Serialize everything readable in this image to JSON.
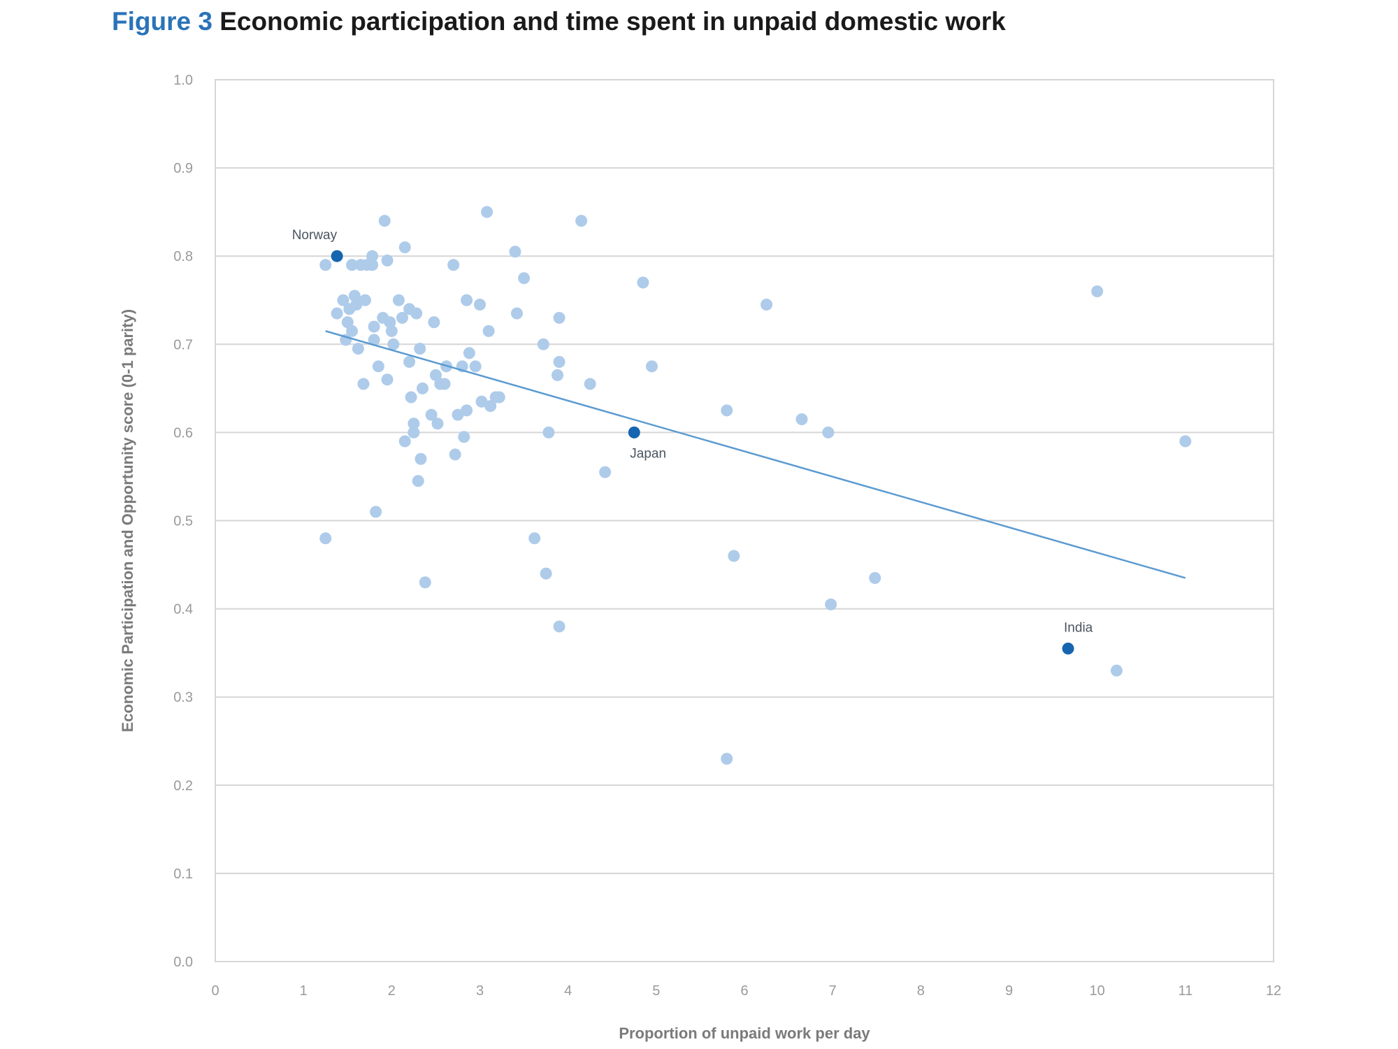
{
  "figure": {
    "number": "Figure 3",
    "title": "Economic participation and time spent in unpaid domestic work"
  },
  "colors": {
    "point": "#aecbea",
    "highlight": "#1565b0",
    "trend": "#5b9bd1",
    "grid": "#d6d6d6",
    "title_accent": "#2a73b8"
  },
  "chart_data": {
    "type": "scatter",
    "title": "Economic participation and time spent in unpaid domestic work",
    "xlabel": "Proportion of unpaid work per day",
    "ylabel": "Economic Participation and Opportunity score (0-1 parity)",
    "xlim": [
      0,
      12
    ],
    "ylim": [
      0,
      1.0
    ],
    "xticks": [
      "0",
      "1",
      "2",
      "3",
      "4",
      "5",
      "6",
      "7",
      "8",
      "9",
      "10",
      "11",
      "12"
    ],
    "yticks": [
      "0.0",
      "0.1",
      "0.2",
      "0.3",
      "0.4",
      "0.5",
      "0.6",
      "0.7",
      "0.8",
      "0.9",
      "1.0"
    ],
    "grid": "horizontal",
    "highlighted": [
      {
        "label": "Norway",
        "x": 1.38,
        "y": 0.8
      },
      {
        "label": "Japan",
        "x": 4.75,
        "y": 0.6
      },
      {
        "label": "India",
        "x": 9.67,
        "y": 0.355
      }
    ],
    "trendline": [
      [
        1.25,
        0.715
      ],
      [
        11.0,
        0.435
      ]
    ],
    "points": [
      [
        1.25,
        0.79
      ],
      [
        1.25,
        0.48
      ],
      [
        1.38,
        0.735
      ],
      [
        1.45,
        0.75
      ],
      [
        1.48,
        0.705
      ],
      [
        1.5,
        0.725
      ],
      [
        1.52,
        0.74
      ],
      [
        1.55,
        0.715
      ],
      [
        1.55,
        0.79
      ],
      [
        1.58,
        0.755
      ],
      [
        1.6,
        0.745
      ],
      [
        1.62,
        0.695
      ],
      [
        1.65,
        0.79
      ],
      [
        1.68,
        0.655
      ],
      [
        1.7,
        0.75
      ],
      [
        1.72,
        0.79
      ],
      [
        1.78,
        0.8
      ],
      [
        1.78,
        0.79
      ],
      [
        1.8,
        0.72
      ],
      [
        1.8,
        0.705
      ],
      [
        1.82,
        0.51
      ],
      [
        1.85,
        0.675
      ],
      [
        1.9,
        0.73
      ],
      [
        1.92,
        0.84
      ],
      [
        1.95,
        0.795
      ],
      [
        1.95,
        0.66
      ],
      [
        1.98,
        0.725
      ],
      [
        2.0,
        0.715
      ],
      [
        2.02,
        0.7
      ],
      [
        2.08,
        0.75
      ],
      [
        2.12,
        0.73
      ],
      [
        2.15,
        0.81
      ],
      [
        2.15,
        0.59
      ],
      [
        2.2,
        0.74
      ],
      [
        2.2,
        0.68
      ],
      [
        2.22,
        0.64
      ],
      [
        2.25,
        0.61
      ],
      [
        2.25,
        0.6
      ],
      [
        2.28,
        0.735
      ],
      [
        2.3,
        0.545
      ],
      [
        2.32,
        0.695
      ],
      [
        2.33,
        0.57
      ],
      [
        2.35,
        0.65
      ],
      [
        2.38,
        0.43
      ],
      [
        2.45,
        0.62
      ],
      [
        2.48,
        0.725
      ],
      [
        2.5,
        0.665
      ],
      [
        2.52,
        0.61
      ],
      [
        2.55,
        0.655
      ],
      [
        2.6,
        0.655
      ],
      [
        2.62,
        0.675
      ],
      [
        2.7,
        0.79
      ],
      [
        2.72,
        0.575
      ],
      [
        2.75,
        0.62
      ],
      [
        2.8,
        0.675
      ],
      [
        2.82,
        0.595
      ],
      [
        2.85,
        0.625
      ],
      [
        2.85,
        0.75
      ],
      [
        2.88,
        0.69
      ],
      [
        2.95,
        0.675
      ],
      [
        3.0,
        0.745
      ],
      [
        3.02,
        0.635
      ],
      [
        3.08,
        0.85
      ],
      [
        3.1,
        0.715
      ],
      [
        3.12,
        0.63
      ],
      [
        3.18,
        0.64
      ],
      [
        3.22,
        0.64
      ],
      [
        3.4,
        0.805
      ],
      [
        3.42,
        0.735
      ],
      [
        3.5,
        0.775
      ],
      [
        3.62,
        0.48
      ],
      [
        3.72,
        0.7
      ],
      [
        3.75,
        0.44
      ],
      [
        3.78,
        0.6
      ],
      [
        3.88,
        0.665
      ],
      [
        3.9,
        0.68
      ],
      [
        3.9,
        0.73
      ],
      [
        3.9,
        0.38
      ],
      [
        4.15,
        0.84
      ],
      [
        4.25,
        0.655
      ],
      [
        4.42,
        0.555
      ],
      [
        4.85,
        0.77
      ],
      [
        4.95,
        0.675
      ],
      [
        5.8,
        0.625
      ],
      [
        5.8,
        0.23
      ],
      [
        5.88,
        0.46
      ],
      [
        6.25,
        0.745
      ],
      [
        6.65,
        0.615
      ],
      [
        6.95,
        0.6
      ],
      [
        6.98,
        0.405
      ],
      [
        7.48,
        0.435
      ],
      [
        10.0,
        0.76
      ],
      [
        10.22,
        0.33
      ],
      [
        11.0,
        0.59
      ]
    ]
  }
}
